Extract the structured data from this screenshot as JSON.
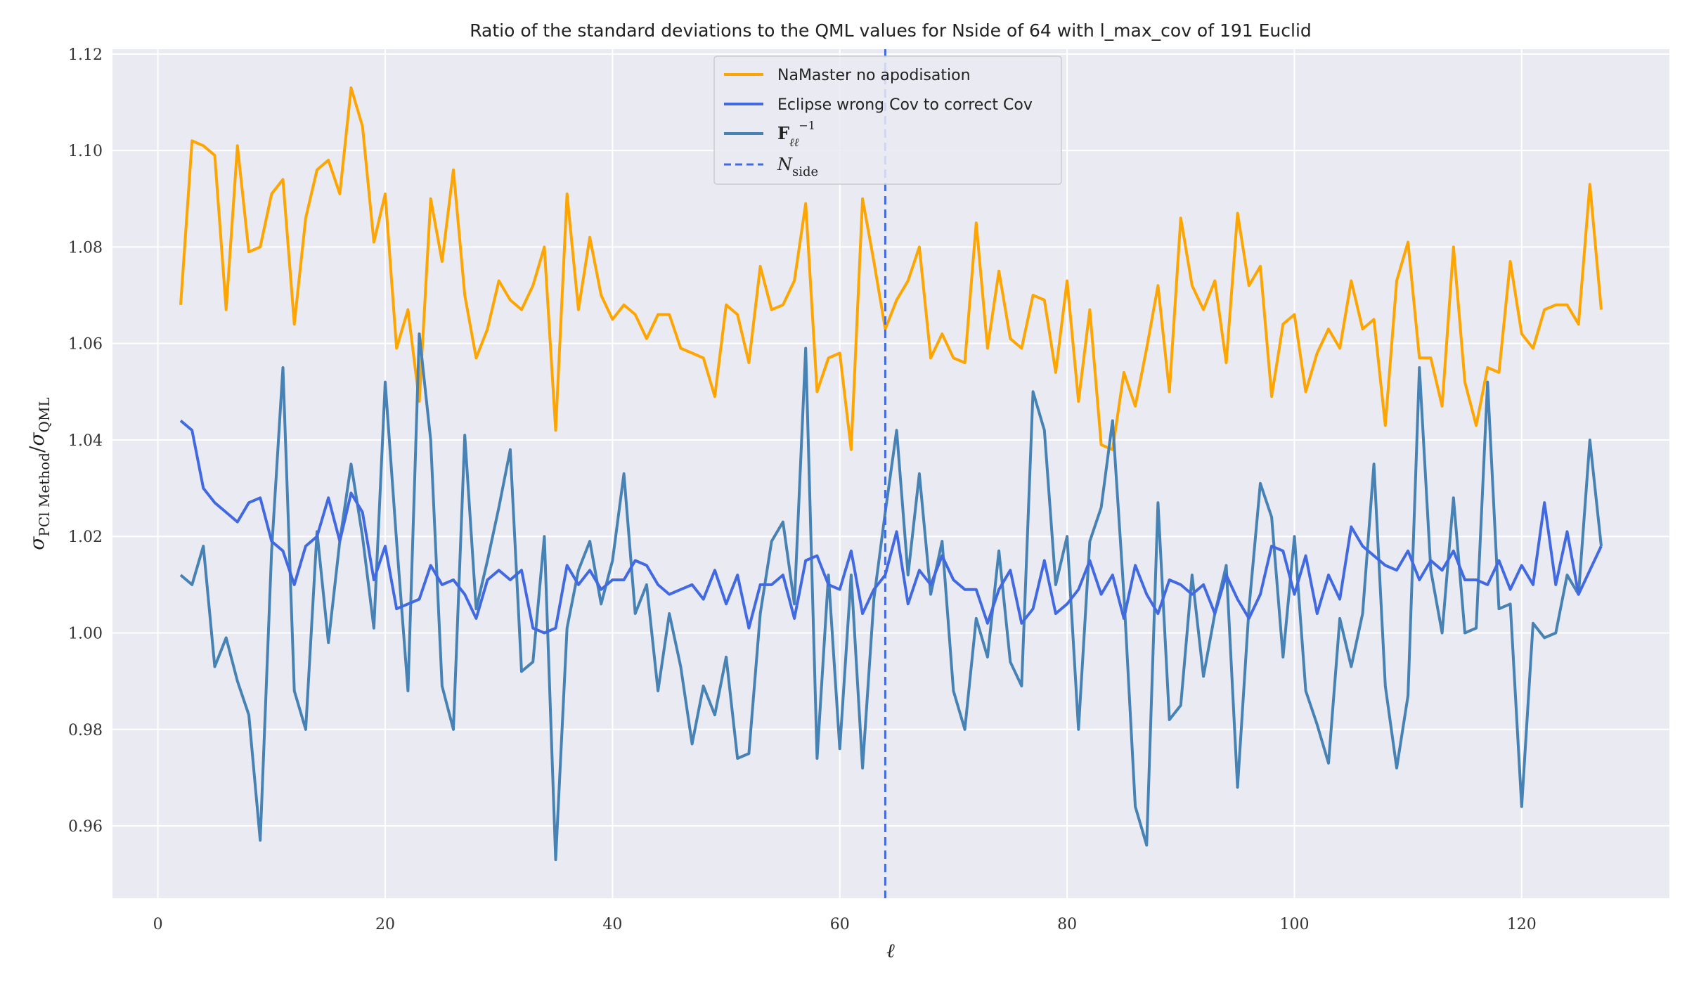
{
  "chart_data": {
    "type": "line",
    "title": "Ratio of the standard deviations to the QML values for Nside of 64 with l_max_cov of 191 Euclid",
    "xlabel": "ℓ",
    "ylabel": "σ_PCl Method / σ_QML",
    "xlim": [
      -4,
      133
    ],
    "ylim": [
      0.945,
      1.121
    ],
    "xticks": [
      0,
      20,
      40,
      60,
      80,
      100,
      120
    ],
    "yticks": [
      0.96,
      0.98,
      1.0,
      1.02,
      1.04,
      1.06,
      1.08,
      1.1,
      1.12
    ],
    "ytick_labels": [
      "0.96",
      "0.98",
      "1.00",
      "1.02",
      "1.04",
      "1.06",
      "1.08",
      "1.10",
      "1.12"
    ],
    "grid": true,
    "legend_position": "top-center",
    "vline": {
      "x": 64,
      "label": "N_side",
      "color": "#4169e1",
      "style": "dashed"
    },
    "series": [
      {
        "name": "NaMaster no apodisation",
        "color": "#ffa500",
        "x_start": 2,
        "values": [
          1.068,
          1.102,
          1.101,
          1.099,
          1.067,
          1.101,
          1.079,
          1.08,
          1.091,
          1.094,
          1.064,
          1.086,
          1.096,
          1.098,
          1.091,
          1.113,
          1.105,
          1.081,
          1.091,
          1.059,
          1.067,
          1.048,
          1.09,
          1.077,
          1.096,
          1.07,
          1.057,
          1.063,
          1.073,
          1.069,
          1.067,
          1.072,
          1.08,
          1.042,
          1.091,
          1.067,
          1.082,
          1.07,
          1.065,
          1.068,
          1.066,
          1.061,
          1.066,
          1.066,
          1.059,
          1.058,
          1.057,
          1.049,
          1.068,
          1.066,
          1.056,
          1.076,
          1.067,
          1.068,
          1.073,
          1.089,
          1.05,
          1.057,
          1.058,
          1.038,
          1.09,
          1.077,
          1.063,
          1.069,
          1.073,
          1.08,
          1.057,
          1.062,
          1.057,
          1.056,
          1.085,
          1.059,
          1.075,
          1.061,
          1.059,
          1.07,
          1.069,
          1.054,
          1.073,
          1.048,
          1.067,
          1.039,
          1.038,
          1.054,
          1.047,
          1.059,
          1.072,
          1.05,
          1.086,
          1.072,
          1.067,
          1.073,
          1.056,
          1.087,
          1.072,
          1.076,
          1.049,
          1.064,
          1.066,
          1.05,
          1.058,
          1.063,
          1.059,
          1.073,
          1.063,
          1.065,
          1.043,
          1.073,
          1.081,
          1.057,
          1.057,
          1.047,
          1.08,
          1.052,
          1.043,
          1.055,
          1.054,
          1.077,
          1.062,
          1.059,
          1.067,
          1.068,
          1.068,
          1.064,
          1.093,
          1.067
        ]
      },
      {
        "name": "Eclipse wrong Cov to correct Cov",
        "color": "#4169e1",
        "x_start": 2,
        "values": [
          1.044,
          1.042,
          1.03,
          1.027,
          1.025,
          1.023,
          1.027,
          1.028,
          1.019,
          1.017,
          1.01,
          1.018,
          1.02,
          1.028,
          1.019,
          1.029,
          1.025,
          1.011,
          1.018,
          1.005,
          1.006,
          1.007,
          1.014,
          1.01,
          1.011,
          1.008,
          1.003,
          1.011,
          1.013,
          1.011,
          1.013,
          1.001,
          1.0,
          1.001,
          1.014,
          1.01,
          1.013,
          1.009,
          1.011,
          1.011,
          1.015,
          1.014,
          1.01,
          1.008,
          1.009,
          1.01,
          1.007,
          1.013,
          1.006,
          1.012,
          1.001,
          1.01,
          1.01,
          1.012,
          1.003,
          1.015,
          1.016,
          1.01,
          1.009,
          1.017,
          1.004,
          1.009,
          1.012,
          1.021,
          1.006,
          1.013,
          1.01,
          1.016,
          1.011,
          1.009,
          1.009,
          1.002,
          1.009,
          1.013,
          1.002,
          1.005,
          1.015,
          1.004,
          1.006,
          1.009,
          1.015,
          1.008,
          1.012,
          1.003,
          1.014,
          1.008,
          1.004,
          1.011,
          1.01,
          1.008,
          1.01,
          1.004,
          1.012,
          1.007,
          1.003,
          1.008,
          1.018,
          1.017,
          1.008,
          1.016,
          1.004,
          1.012,
          1.007,
          1.022,
          1.018,
          1.016,
          1.014,
          1.013,
          1.017,
          1.011,
          1.015,
          1.013,
          1.017,
          1.011,
          1.011,
          1.01,
          1.015,
          1.009,
          1.014,
          1.01,
          1.027,
          1.01,
          1.021,
          1.008,
          1.013,
          1.018
        ]
      },
      {
        "name": "F_ℓℓ^-1",
        "color": "#4682b4",
        "x_start": 2,
        "values": [
          1.012,
          1.01,
          1.018,
          0.993,
          0.999,
          0.99,
          0.983,
          0.957,
          1.017,
          1.055,
          0.988,
          0.98,
          1.021,
          0.998,
          1.019,
          1.035,
          1.02,
          1.001,
          1.052,
          1.019,
          0.988,
          1.062,
          1.04,
          0.989,
          0.98,
          1.041,
          1.005,
          1.015,
          1.026,
          1.038,
          0.992,
          0.994,
          1.02,
          0.953,
          1.001,
          1.013,
          1.019,
          1.006,
          1.015,
          1.033,
          1.004,
          1.01,
          0.988,
          1.004,
          0.993,
          0.977,
          0.989,
          0.983,
          0.995,
          0.974,
          0.975,
          1.004,
          1.019,
          1.023,
          1.006,
          1.059,
          0.974,
          1.012,
          0.976,
          1.012,
          0.972,
          1.007,
          1.025,
          1.042,
          1.012,
          1.033,
          1.008,
          1.019,
          0.988,
          0.98,
          1.003,
          0.995,
          1.017,
          0.994,
          0.989,
          1.05,
          1.042,
          1.01,
          1.02,
          0.98,
          1.019,
          1.026,
          1.044,
          1.008,
          0.964,
          0.956,
          1.027,
          0.982,
          0.985,
          1.012,
          0.991,
          1.004,
          1.014,
          0.968,
          1.005,
          1.031,
          1.024,
          0.995,
          1.02,
          0.988,
          0.981,
          0.973,
          1.003,
          0.993,
          1.004,
          1.035,
          0.989,
          0.972,
          0.987,
          1.055,
          1.013,
          1.0,
          1.028,
          1.0,
          1.001,
          1.052,
          1.005,
          1.006,
          0.964,
          1.002,
          0.999,
          1.0,
          1.012,
          1.008,
          1.04,
          1.018
        ]
      }
    ]
  }
}
